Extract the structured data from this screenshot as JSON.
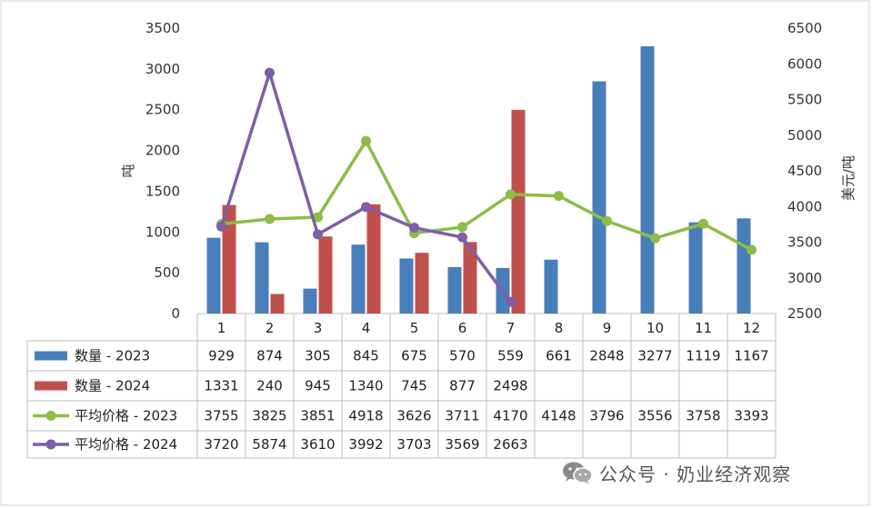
{
  "chart_data": {
    "type": "bar",
    "categories": [
      "1",
      "2",
      "3",
      "4",
      "5",
      "6",
      "7",
      "8",
      "9",
      "10",
      "11",
      "12"
    ],
    "ylabel_left": "吨",
    "ylabel_right": "美元/吨",
    "ylim_left": [
      0,
      3500
    ],
    "ylim_right": [
      2500,
      6500
    ],
    "ticks_left": [
      "0",
      "500",
      "1000",
      "1500",
      "2000",
      "2500",
      "3000",
      "3500"
    ],
    "ticks_right": [
      "2500",
      "3000",
      "3500",
      "4000",
      "4500",
      "5000",
      "5500",
      "6000",
      "6500"
    ],
    "series": [
      {
        "name": "数量 - 2023",
        "type": "bar",
        "axis": "left",
        "color": "#4a7ebb",
        "values": [
          929,
          874,
          305,
          845,
          675,
          570,
          559,
          661,
          2848,
          3277,
          1119,
          1167
        ]
      },
      {
        "name": "数量 - 2024",
        "type": "bar",
        "axis": "left",
        "color": "#c0504d",
        "values": [
          1331,
          240,
          945,
          1340,
          745,
          877,
          2498,
          null,
          null,
          null,
          null,
          null
        ]
      },
      {
        "name": "平均价格 - 2023",
        "type": "line",
        "axis": "right",
        "color": "#8cbd48",
        "values": [
          3755,
          3825,
          3851,
          4918,
          3626,
          3711,
          4170,
          4148,
          3796,
          3556,
          3758,
          3393
        ]
      },
      {
        "name": "平均价格 - 2024",
        "type": "line",
        "axis": "right",
        "color": "#7f5ea8",
        "values": [
          3720,
          5874,
          3610,
          3992,
          3703,
          3569,
          2663,
          null,
          null,
          null,
          null,
          null
        ]
      }
    ],
    "legend": "data-table-below",
    "grid": false
  },
  "watermark": {
    "icon": "wechat-icon",
    "text": "公众号 · 奶业经济观察"
  }
}
